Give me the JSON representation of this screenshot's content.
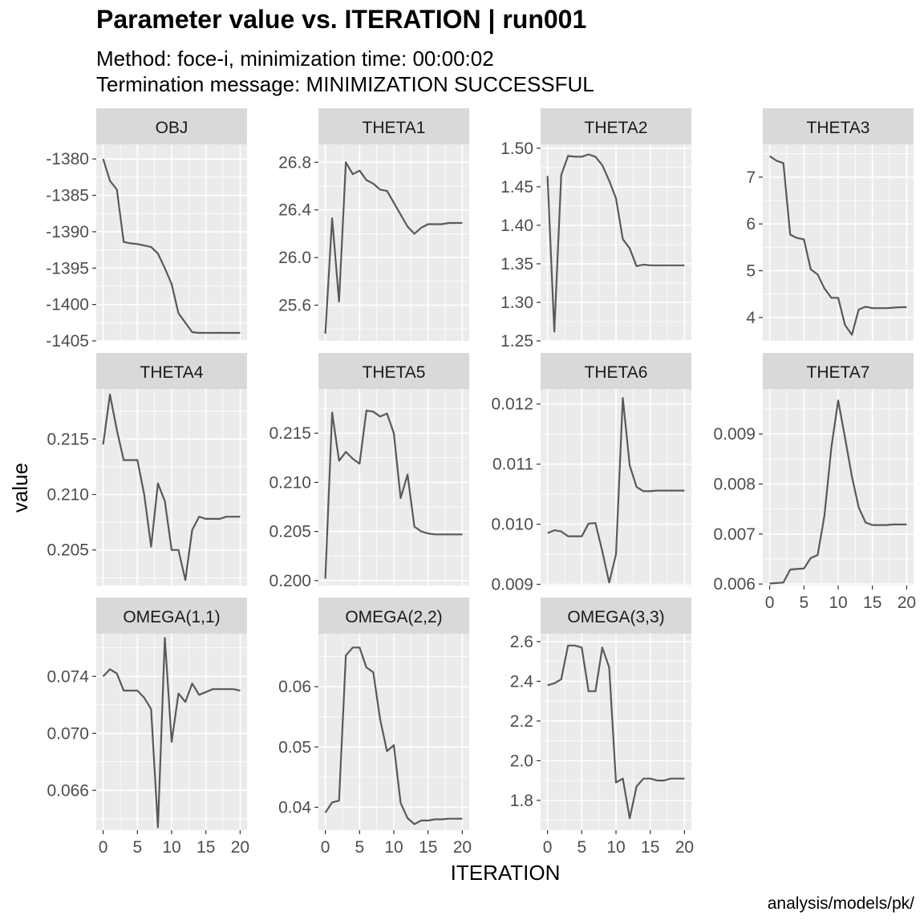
{
  "title": "Parameter value vs. ITERATION | run001",
  "subtitle_line1": "Method: foce-i, minimization time: 00:00:02",
  "subtitle_line2": "Termination message: MINIMIZATION SUCCESSFUL",
  "caption": "analysis/models/pk/",
  "colors": {
    "panel_bg": "#EBEBEB",
    "strip_bg": "#D9D9D9",
    "grid": "#FFFFFF",
    "line": "#595959"
  },
  "chart_data": {
    "type": "line",
    "xlabel": "ITERATION",
    "ylabel": "value",
    "xlim": [
      0,
      20
    ],
    "x_ticks": [
      0,
      5,
      10,
      15,
      20
    ],
    "x_tick_labels": [
      "0",
      "5",
      "10",
      "15",
      "20"
    ],
    "x": [
      0,
      1,
      2,
      3,
      4,
      5,
      6,
      7,
      8,
      9,
      10,
      11,
      12,
      13,
      14,
      15,
      16,
      17,
      18,
      19,
      20
    ],
    "panels": [
      {
        "name": "OBJ",
        "ylim": [
          -1405,
          -1378
        ],
        "y_ticks": [
          -1380,
          -1385,
          -1390,
          -1395,
          -1400,
          -1405
        ],
        "y_tick_labels": [
          "-1380",
          "-1385",
          "-1390",
          "-1395",
          "-1400",
          "-1405"
        ],
        "values": [
          -1380.0,
          -1383.0,
          -1384.2,
          -1391.4,
          -1391.6,
          -1391.7,
          -1391.9,
          -1392.1,
          -1393.0,
          -1395.0,
          -1397.2,
          -1401.2,
          -1402.5,
          -1403.8,
          -1403.9,
          -1403.9,
          -1403.9,
          -1403.9,
          -1403.9,
          -1403.9,
          -1403.9
        ]
      },
      {
        "name": "THETA1",
        "ylim": [
          25.3,
          26.95
        ],
        "y_ticks": [
          25.6,
          26.0,
          26.4,
          26.8
        ],
        "y_tick_labels": [
          "25.6",
          "26.0",
          "26.4",
          "26.8"
        ],
        "values": [
          25.36,
          26.33,
          25.63,
          26.8,
          26.7,
          26.73,
          26.65,
          26.62,
          26.57,
          26.56,
          26.46,
          26.36,
          26.26,
          26.2,
          26.25,
          26.28,
          26.28,
          26.28,
          26.29,
          26.29,
          26.29
        ]
      },
      {
        "name": "THETA2",
        "ylim": [
          1.25,
          1.505
        ],
        "y_ticks": [
          1.25,
          1.3,
          1.35,
          1.4,
          1.45,
          1.5
        ],
        "y_tick_labels": [
          "1.25",
          "1.30",
          "1.35",
          "1.40",
          "1.45",
          "1.50"
        ],
        "values": [
          1.464,
          1.262,
          1.465,
          1.49,
          1.489,
          1.489,
          1.492,
          1.489,
          1.478,
          1.458,
          1.435,
          1.382,
          1.37,
          1.347,
          1.349,
          1.348,
          1.348,
          1.348,
          1.348,
          1.348,
          1.348
        ]
      },
      {
        "name": "THETA3",
        "ylim": [
          3.5,
          7.7
        ],
        "y_ticks": [
          4,
          5,
          6,
          7
        ],
        "y_tick_labels": [
          "4",
          "5",
          "6",
          "7"
        ],
        "values": [
          7.45,
          7.35,
          7.3,
          5.77,
          5.7,
          5.67,
          5.03,
          4.92,
          4.62,
          4.42,
          4.42,
          3.84,
          3.63,
          4.17,
          4.23,
          4.2,
          4.2,
          4.2,
          4.21,
          4.22,
          4.22
        ]
      },
      {
        "name": "THETA4",
        "ylim": [
          0.2018,
          0.2195
        ],
        "y_ticks": [
          0.205,
          0.21,
          0.215
        ],
        "y_tick_labels": [
          "0.205",
          "0.210",
          "0.215"
        ],
        "values": [
          0.2145,
          0.219,
          0.2158,
          0.2131,
          0.2131,
          0.2131,
          0.21,
          0.2053,
          0.211,
          0.2094,
          0.205,
          0.205,
          0.2023,
          0.2068,
          0.208,
          0.2078,
          0.2078,
          0.2078,
          0.208,
          0.208,
          0.208
        ]
      },
      {
        "name": "THETA5",
        "ylim": [
          0.1995,
          0.2195
        ],
        "y_ticks": [
          0.2,
          0.205,
          0.21,
          0.215
        ],
        "y_tick_labels": [
          "0.200",
          "0.205",
          "0.210",
          "0.215"
        ],
        "values": [
          0.2002,
          0.2171,
          0.2122,
          0.2131,
          0.2124,
          0.2119,
          0.2173,
          0.2172,
          0.2167,
          0.217,
          0.215,
          0.2084,
          0.2108,
          0.2055,
          0.205,
          0.2048,
          0.2047,
          0.2047,
          0.2047,
          0.2047,
          0.2047
        ]
      },
      {
        "name": "THETA6",
        "ylim": [
          0.00898,
          0.01225
        ],
        "y_ticks": [
          0.009,
          0.01,
          0.011,
          0.012
        ],
        "y_tick_labels": [
          "0.009",
          "0.010",
          "0.011",
          "0.012"
        ],
        "values": [
          0.00985,
          0.0099,
          0.00988,
          0.0098,
          0.0098,
          0.0098,
          0.01001,
          0.01002,
          0.00955,
          0.00903,
          0.0095,
          0.0121,
          0.01098,
          0.01062,
          0.01055,
          0.01055,
          0.01056,
          0.01056,
          0.01056,
          0.01056,
          0.01056
        ]
      },
      {
        "name": "THETA7",
        "ylim": [
          0.00597,
          0.0099
        ],
        "y_ticks": [
          0.006,
          0.007,
          0.008,
          0.009
        ],
        "y_tick_labels": [
          "0.006",
          "0.007",
          "0.008",
          "0.009"
        ],
        "values": [
          0.00601,
          0.00602,
          0.00603,
          0.00629,
          0.0063,
          0.00631,
          0.00652,
          0.00658,
          0.00737,
          0.00873,
          0.00967,
          0.00893,
          0.00815,
          0.00753,
          0.00723,
          0.00718,
          0.00718,
          0.00718,
          0.00719,
          0.00719,
          0.00719
        ]
      },
      {
        "name": "OMEGA(1,1)",
        "ylim": [
          0.0632,
          0.077
        ],
        "y_ticks": [
          0.066,
          0.07,
          0.074
        ],
        "y_tick_labels": [
          "0.066",
          "0.070",
          "0.074"
        ],
        "values": [
          0.074,
          0.0745,
          0.0742,
          0.073,
          0.073,
          0.073,
          0.0725,
          0.0717,
          0.0634,
          0.0767,
          0.0694,
          0.0728,
          0.0722,
          0.0735,
          0.0727,
          0.0729,
          0.0731,
          0.0731,
          0.0731,
          0.0731,
          0.073
        ]
      },
      {
        "name": "OMEGA(2,2)",
        "ylim": [
          0.0362,
          0.0688
        ],
        "y_ticks": [
          0.04,
          0.05,
          0.06
        ],
        "y_tick_labels": [
          "0.04",
          "0.05",
          "0.06"
        ],
        "values": [
          0.0391,
          0.0408,
          0.0411,
          0.0652,
          0.0665,
          0.0665,
          0.0632,
          0.0624,
          0.0546,
          0.0493,
          0.0503,
          0.0407,
          0.0382,
          0.0372,
          0.0378,
          0.0378,
          0.038,
          0.038,
          0.0381,
          0.0381,
          0.0381
        ]
      },
      {
        "name": "OMEGA(3,3)",
        "ylim": [
          1.65,
          2.64
        ],
        "y_ticks": [
          1.8,
          2.0,
          2.2,
          2.4,
          2.6
        ],
        "y_tick_labels": [
          "1.8",
          "2.0",
          "2.2",
          "2.4",
          "2.6"
        ],
        "values": [
          2.38,
          2.39,
          2.41,
          2.58,
          2.58,
          2.57,
          2.35,
          2.35,
          2.57,
          2.47,
          1.89,
          1.91,
          1.71,
          1.87,
          1.91,
          1.91,
          1.9,
          1.9,
          1.91,
          1.91,
          1.91
        ]
      }
    ]
  }
}
